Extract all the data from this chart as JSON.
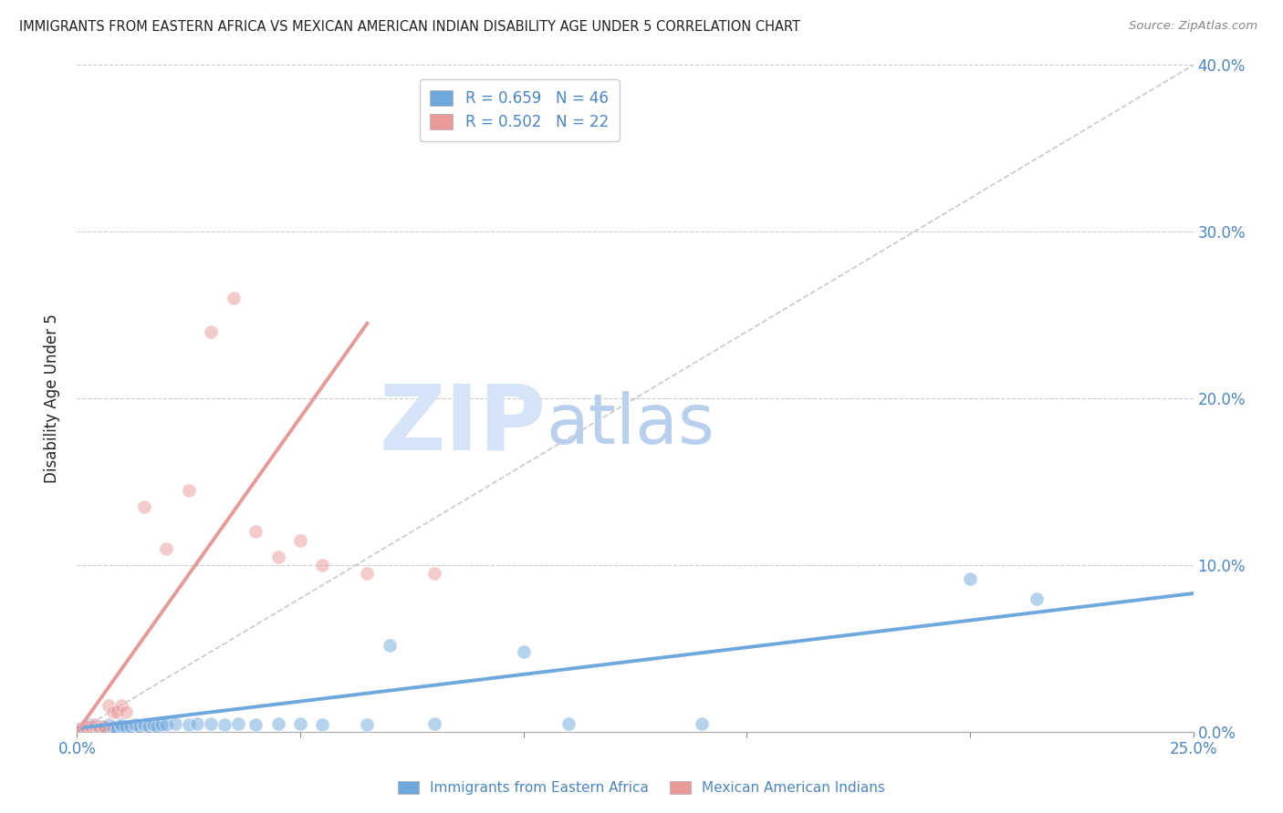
{
  "title": "IMMIGRANTS FROM EASTERN AFRICA VS MEXICAN AMERICAN INDIAN DISABILITY AGE UNDER 5 CORRELATION CHART",
  "source": "Source: ZipAtlas.com",
  "ylabel": "Disability Age Under 5",
  "xlim": [
    0,
    0.25
  ],
  "ylim": [
    0,
    0.4
  ],
  "xticks": [
    0.0,
    0.05,
    0.1,
    0.15,
    0.2,
    0.25
  ],
  "yticks": [
    0.0,
    0.1,
    0.2,
    0.3,
    0.4
  ],
  "xtick_labels_left": [
    "0.0%",
    "",
    "",
    "",
    "",
    "25.0%"
  ],
  "ytick_labels_right": [
    "0.0%",
    "10.0%",
    "20.0%",
    "30.0%",
    "40.0%"
  ],
  "blue_R": 0.659,
  "blue_N": 46,
  "pink_R": 0.502,
  "pink_N": 22,
  "blue_color": "#6fa8dc",
  "pink_color": "#ea9999",
  "blue_scatter": [
    [
      0.001,
      0.002
    ],
    [
      0.002,
      0.003
    ],
    [
      0.002,
      0.001
    ],
    [
      0.003,
      0.002
    ],
    [
      0.003,
      0.004
    ],
    [
      0.004,
      0.003
    ],
    [
      0.004,
      0.002
    ],
    [
      0.005,
      0.003
    ],
    [
      0.005,
      0.001
    ],
    [
      0.006,
      0.002
    ],
    [
      0.006,
      0.003
    ],
    [
      0.007,
      0.002
    ],
    [
      0.007,
      0.004
    ],
    [
      0.008,
      0.003
    ],
    [
      0.008,
      0.002
    ],
    [
      0.009,
      0.002
    ],
    [
      0.01,
      0.003
    ],
    [
      0.01,
      0.004
    ],
    [
      0.011,
      0.003
    ],
    [
      0.012,
      0.003
    ],
    [
      0.013,
      0.004
    ],
    [
      0.014,
      0.003
    ],
    [
      0.015,
      0.004
    ],
    [
      0.016,
      0.003
    ],
    [
      0.017,
      0.004
    ],
    [
      0.018,
      0.003
    ],
    [
      0.019,
      0.004
    ],
    [
      0.02,
      0.004
    ],
    [
      0.022,
      0.005
    ],
    [
      0.025,
      0.004
    ],
    [
      0.027,
      0.005
    ],
    [
      0.03,
      0.005
    ],
    [
      0.033,
      0.004
    ],
    [
      0.036,
      0.005
    ],
    [
      0.04,
      0.004
    ],
    [
      0.045,
      0.005
    ],
    [
      0.05,
      0.005
    ],
    [
      0.055,
      0.004
    ],
    [
      0.065,
      0.004
    ],
    [
      0.07,
      0.052
    ],
    [
      0.08,
      0.005
    ],
    [
      0.1,
      0.048
    ],
    [
      0.11,
      0.005
    ],
    [
      0.14,
      0.005
    ],
    [
      0.2,
      0.092
    ],
    [
      0.215,
      0.08
    ]
  ],
  "pink_scatter": [
    [
      0.001,
      0.002
    ],
    [
      0.002,
      0.003
    ],
    [
      0.003,
      0.003
    ],
    [
      0.004,
      0.004
    ],
    [
      0.005,
      0.002
    ],
    [
      0.006,
      0.003
    ],
    [
      0.007,
      0.016
    ],
    [
      0.008,
      0.012
    ],
    [
      0.009,
      0.012
    ],
    [
      0.01,
      0.016
    ],
    [
      0.011,
      0.012
    ],
    [
      0.015,
      0.135
    ],
    [
      0.02,
      0.11
    ],
    [
      0.025,
      0.145
    ],
    [
      0.03,
      0.24
    ],
    [
      0.035,
      0.26
    ],
    [
      0.04,
      0.12
    ],
    [
      0.045,
      0.105
    ],
    [
      0.05,
      0.115
    ],
    [
      0.055,
      0.1
    ],
    [
      0.065,
      0.095
    ],
    [
      0.08,
      0.095
    ]
  ],
  "blue_line_x": [
    0.0,
    0.25
  ],
  "blue_line_y": [
    0.002,
    0.083
  ],
  "pink_line_x": [
    0.0,
    0.065
  ],
  "pink_line_y": [
    0.0,
    0.245
  ],
  "diag_line_x": [
    0.0,
    0.25
  ],
  "diag_line_y": [
    0.0,
    0.4
  ],
  "watermark_zip": "ZIP",
  "watermark_atlas": "atlas",
  "watermark_color_zip": "#d6e4f7",
  "watermark_color_atlas": "#b8d0ee",
  "legend_label_blue": "Immigrants from Eastern Africa",
  "legend_label_pink": "Mexican American Indians",
  "title_color": "#222222",
  "axis_label_color": "#4a86c8",
  "tick_color": "#4a86c8",
  "background_color": "#ffffff",
  "grid_color": "#cccccc"
}
